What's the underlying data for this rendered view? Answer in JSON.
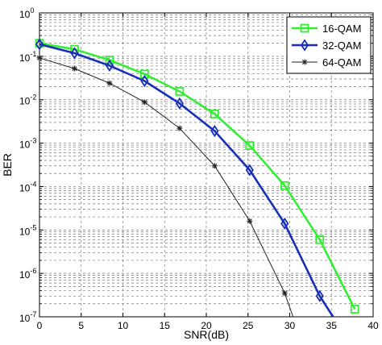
{
  "chart_data": {
    "type": "line",
    "xlabel": "SNR(dB)",
    "ylabel": "BER",
    "xlim": [
      0,
      40
    ],
    "ylim": [
      1e-07,
      1
    ],
    "yscale": "log",
    "grid": true,
    "legend_position": "top-right",
    "x_ticks": [
      "0",
      "5",
      "10",
      "15",
      "20",
      "25",
      "30",
      "35",
      "40"
    ],
    "y_ticks": [
      {
        "base": "10",
        "exp": "0"
      },
      {
        "base": "10",
        "exp": "-1"
      },
      {
        "base": "10",
        "exp": "-2"
      },
      {
        "base": "10",
        "exp": "-3"
      },
      {
        "base": "10",
        "exp": "-4"
      },
      {
        "base": "10",
        "exp": "-5"
      },
      {
        "base": "10",
        "exp": "-6"
      },
      {
        "base": "10",
        "exp": "-7"
      }
    ],
    "series": [
      {
        "name": "16-QAM",
        "color": "#33ee33",
        "marker": "square",
        "x": [
          0,
          4.2,
          8.4,
          12.6,
          16.8,
          21,
          25.2,
          29.4,
          33.6,
          37.8
        ],
        "y": [
          0.2,
          0.145,
          0.082,
          0.039,
          0.0155,
          0.0047,
          0.00088,
          0.000105,
          6e-06,
          1.5e-07
        ]
      },
      {
        "name": "32-QAM",
        "color": "#1a2fb8",
        "marker": "diamond",
        "x": [
          0,
          4.2,
          8.4,
          12.6,
          16.8,
          21,
          25.2,
          29.4,
          33.6,
          35.2
        ],
        "y": [
          0.19,
          0.118,
          0.061,
          0.027,
          0.0082,
          0.0019,
          0.00024,
          1.4e-05,
          3e-07,
          1e-07
        ]
      },
      {
        "name": "64-QAM",
        "color": "#222222",
        "marker": "star",
        "x": [
          0,
          4.2,
          8.4,
          12.6,
          16.8,
          21,
          25.2,
          29.4,
          30.4
        ],
        "y": [
          0.092,
          0.052,
          0.024,
          0.0088,
          0.0022,
          0.0003,
          1.6e-05,
          3.5e-07,
          1e-07
        ]
      }
    ]
  }
}
